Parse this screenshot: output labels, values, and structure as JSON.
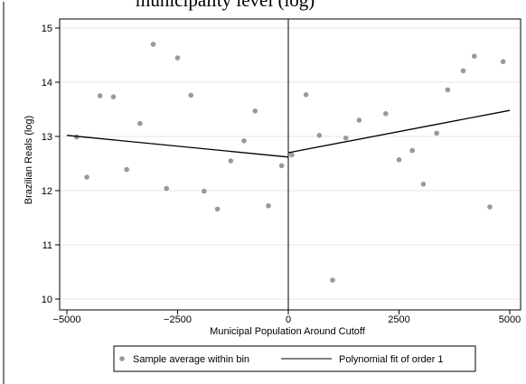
{
  "chart_data": {
    "type": "scatter",
    "title_fragment": "municipality level (log)",
    "xlabel": "Municipal Population Around Cutoff",
    "ylabel": "Brazilian Reals (log)",
    "xlim": [
      -5000,
      5000
    ],
    "ylim": [
      10,
      15
    ],
    "x_ticks": [
      -5000,
      -2500,
      0,
      2500,
      5000
    ],
    "x_tick_labels": [
      "−5000",
      "−2500",
      "0",
      "2500",
      "5000"
    ],
    "y_ticks": [
      10,
      11,
      12,
      13,
      14,
      15
    ],
    "y_tick_labels": [
      "10",
      "11",
      "12",
      "13",
      "14",
      "15"
    ],
    "cutoff_x": 0,
    "grid": "horizontal",
    "legend_position": "bottom",
    "series": [
      {
        "name": "Sample average within bin",
        "kind": "scatter",
        "color": "#999999",
        "points": [
          [
            -4780,
            12.99
          ],
          [
            -4550,
            12.25
          ],
          [
            -4250,
            13.75
          ],
          [
            -3950,
            13.73
          ],
          [
            -3650,
            12.39
          ],
          [
            -3350,
            13.24
          ],
          [
            -3050,
            14.7
          ],
          [
            -2750,
            12.04
          ],
          [
            -2500,
            14.45
          ],
          [
            -2200,
            13.76
          ],
          [
            -1900,
            11.99
          ],
          [
            -1600,
            11.66
          ],
          [
            -1300,
            12.55
          ],
          [
            -1000,
            12.92
          ],
          [
            -750,
            13.47
          ],
          [
            -450,
            11.72
          ],
          [
            -150,
            12.46
          ],
          [
            80,
            12.66
          ],
          [
            400,
            13.77
          ],
          [
            700,
            13.02
          ],
          [
            1000,
            10.35
          ],
          [
            1300,
            12.97
          ],
          [
            1600,
            13.3
          ],
          [
            2200,
            13.42
          ],
          [
            2500,
            12.57
          ],
          [
            2800,
            12.74
          ],
          [
            3050,
            12.12
          ],
          [
            3350,
            13.06
          ],
          [
            3600,
            13.86
          ],
          [
            3950,
            14.21
          ],
          [
            4200,
            14.48
          ],
          [
            4550,
            11.7
          ],
          [
            4850,
            14.38
          ]
        ]
      },
      {
        "name": "Polynomial fit of order 1",
        "kind": "line",
        "color": "#000000",
        "segments": [
          [
            [
              -5000,
              13.02
            ],
            [
              0,
              12.62
            ]
          ],
          [
            [
              0,
              12.7
            ],
            [
              5000,
              13.48
            ]
          ]
        ]
      }
    ]
  }
}
